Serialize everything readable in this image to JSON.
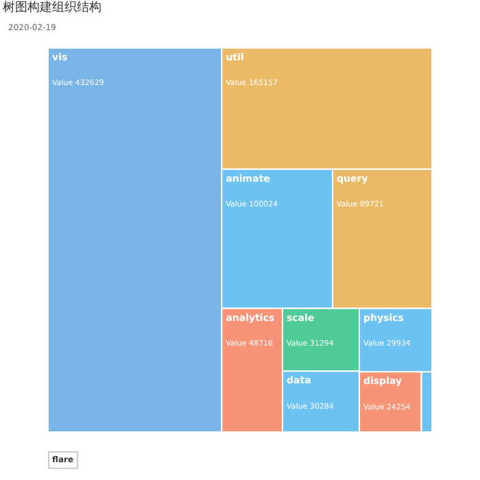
{
  "chart_data": {
    "type": "other",
    "title": "树图构建组织结构",
    "subtitle": "2020-02-19",
    "categories": [
      "vis",
      "util",
      "animate",
      "query",
      "analytics",
      "scale",
      "data",
      "physics",
      "display",
      "flex"
    ],
    "values": [
      432629,
      165157,
      100024,
      89721,
      48716,
      31294,
      30284,
      29934,
      24254,
      4116
    ],
    "value_labels": [
      "Value 432629",
      "Value 165157",
      "Value 100024",
      "Value 89721",
      "Value 48716",
      "Value 31294",
      "Value 30284",
      "Value 29934",
      "Value 24254",
      "Value 4116"
    ],
    "colors": [
      "#78b4e6",
      "#ebba66",
      "#6cc2f0",
      "#ebba66",
      "#f79478",
      "#4ecb96",
      "#6cc2f0",
      "#6cc2f0",
      "#f79478",
      "#6cc2f0"
    ],
    "annotations": [
      "flare"
    ]
  }
}
